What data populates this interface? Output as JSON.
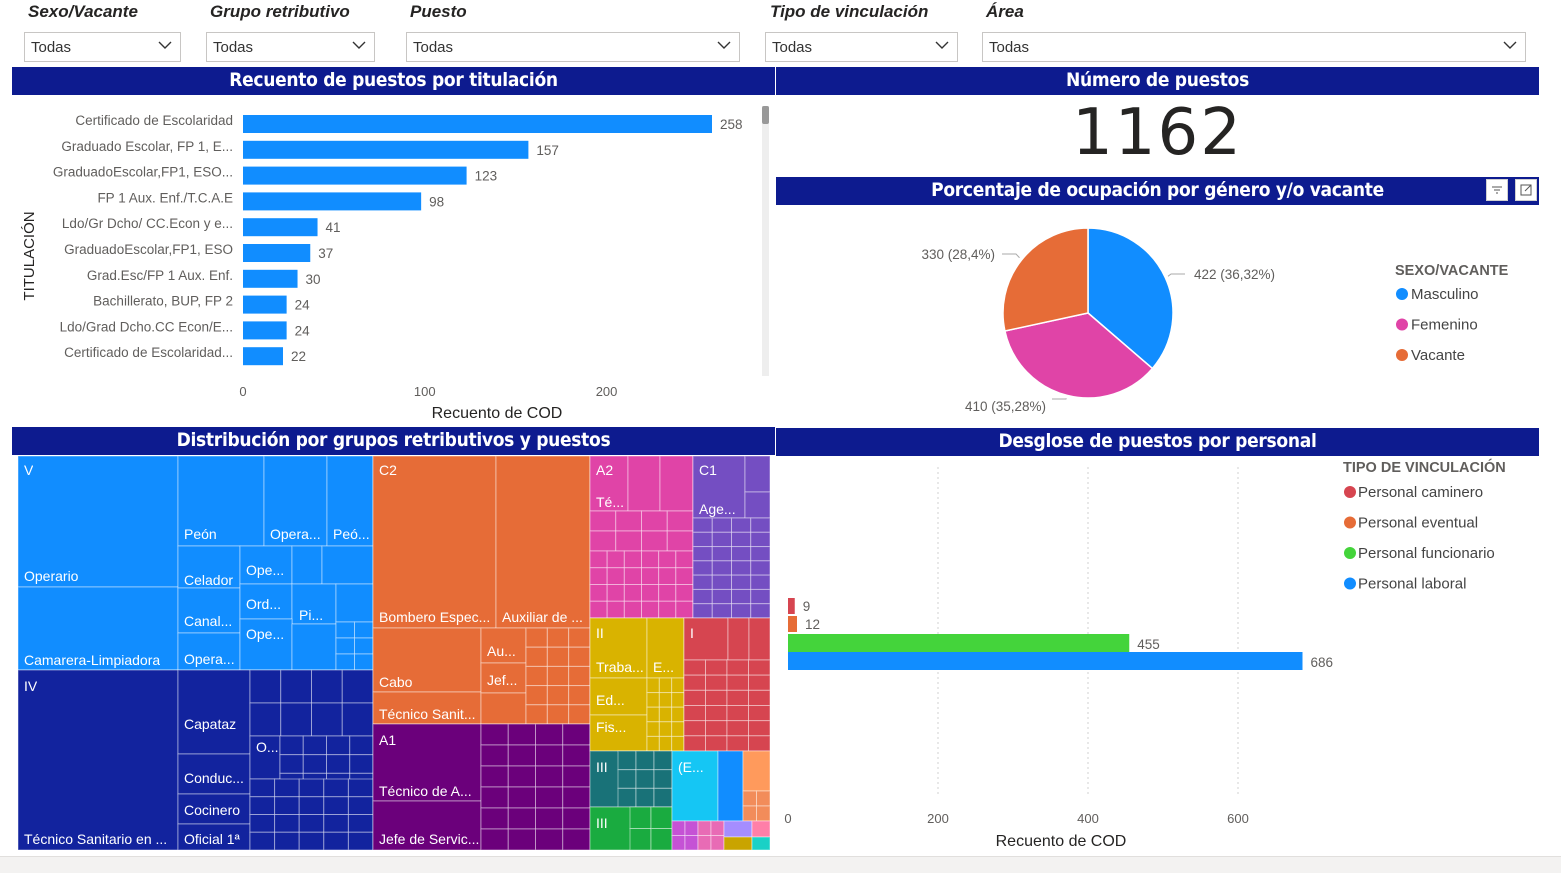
{
  "slicers": [
    {
      "label": "Sexo/Vacante",
      "value": "Todas"
    },
    {
      "label": "Grupo retributivo",
      "value": "Todas"
    },
    {
      "label": "Puesto",
      "value": "Todas"
    },
    {
      "label": "Tipo de vinculación",
      "value": "Todas"
    },
    {
      "label": "Área",
      "value": "Todas"
    }
  ],
  "panels": {
    "titulacion": "Recuento de puestos por titulación",
    "numero": "Número de puestos",
    "porcentaje": "Porcentaje de ocupación por género y/o vacante",
    "distribucion": "Distribución por grupos retributivos y puestos",
    "desglose": "Desglose de puestos por personal"
  },
  "kpi": {
    "value": "1162"
  },
  "chart_data": [
    {
      "type": "bar",
      "orientation": "horizontal",
      "ylabel": "TITULACIÓN",
      "xlabel": "Recuento de COD",
      "categories": [
        "Certificado de Escolaridad",
        "Graduado Escolar, FP 1, E...",
        "GraduadoEscolar,FP1, ESO...",
        "FP 1 Aux. Enf./T.C.A.E",
        "Ldo/Gr Dcho/ CC.Econ y e...",
        "GraduadoEscolar,FP1, ESO",
        "Grad.Esc/FP 1 Aux. Enf.",
        "Bachillerato, BUP, FP 2",
        "Ldo/Grad Dcho.CC Econ/E...",
        "Certificado de Escolaridad..."
      ],
      "values": [
        258,
        157,
        123,
        98,
        41,
        37,
        30,
        24,
        24,
        22
      ],
      "xticks": [
        "0",
        "100",
        "200"
      ],
      "xlim": [
        0,
        258
      ],
      "color": "#118dff"
    },
    {
      "type": "pie",
      "legend_title": "SEXO/VACANTE",
      "slices": [
        {
          "name": "Masculino",
          "value": 422,
          "label": "422 (36,32%)",
          "color": "#118dff"
        },
        {
          "name": "Femenino",
          "value": 410,
          "label": "410 (35,28%)",
          "color": "#e044a7"
        },
        {
          "name": "Vacante",
          "value": 330,
          "label": "330 (28,4%)",
          "color": "#e66c37"
        }
      ]
    },
    {
      "type": "bar",
      "orientation": "horizontal",
      "legend_title": "TIPO DE VINCULACIÓN",
      "xlabel": "Recuento de COD",
      "series": [
        {
          "name": "Personal caminero",
          "value": 9,
          "color": "#d64550"
        },
        {
          "name": "Personal eventual",
          "value": 12,
          "color": "#e66c37"
        },
        {
          "name": "Personal funcionario",
          "value": 455,
          "color": "#44d43b"
        },
        {
          "name": "Personal laboral",
          "value": 686,
          "color": "#118dff"
        }
      ],
      "xticks": [
        "0",
        "200",
        "400",
        "600"
      ],
      "xlim": [
        0,
        686
      ]
    },
    {
      "type": "treemap",
      "groups": [
        {
          "name": "V",
          "color": "#118dff",
          "items": [
            "Operario",
            "Camarera-Limpiadora",
            "Peón",
            "Opera...",
            "Peó...",
            "Celador",
            "Ope...",
            "Ord...",
            "Canal...",
            "Pi...",
            "Ope...",
            "Opera..."
          ]
        },
        {
          "name": "IV",
          "color": "#12239e",
          "items": [
            "Técnico Sanitario en ...",
            "Capataz",
            "O...",
            "Conduc...",
            "Cocinero",
            "Oficial 1ª"
          ]
        },
        {
          "name": "C2",
          "color": "#e66c37",
          "items": [
            "Bombero Espec...",
            "Auxiliar de ...",
            "Au...",
            "Jef...",
            "Cabo",
            "Técnico Sanit..."
          ]
        },
        {
          "name": "A1",
          "color": "#6b007b",
          "items": [
            "Técnico de A...",
            "Jefe de Servic..."
          ]
        },
        {
          "name": "A2",
          "color": "#e044a7",
          "items": [
            "Té..."
          ]
        },
        {
          "name": "C1",
          "color": "#744ec2",
          "items": [
            "Age..."
          ]
        },
        {
          "name": "II",
          "color": "#d9b300",
          "items": [
            "Traba...",
            "E...",
            "Ed...",
            "Fis..."
          ]
        },
        {
          "name": "I",
          "color": "#d64550",
          "items": []
        },
        {
          "name": "III",
          "color": "#197278",
          "items": []
        },
        {
          "name": "(E...",
          "color": "#1aab40",
          "items": []
        },
        {
          "name": "III",
          "color": "#15c6f4",
          "items": []
        }
      ]
    }
  ]
}
